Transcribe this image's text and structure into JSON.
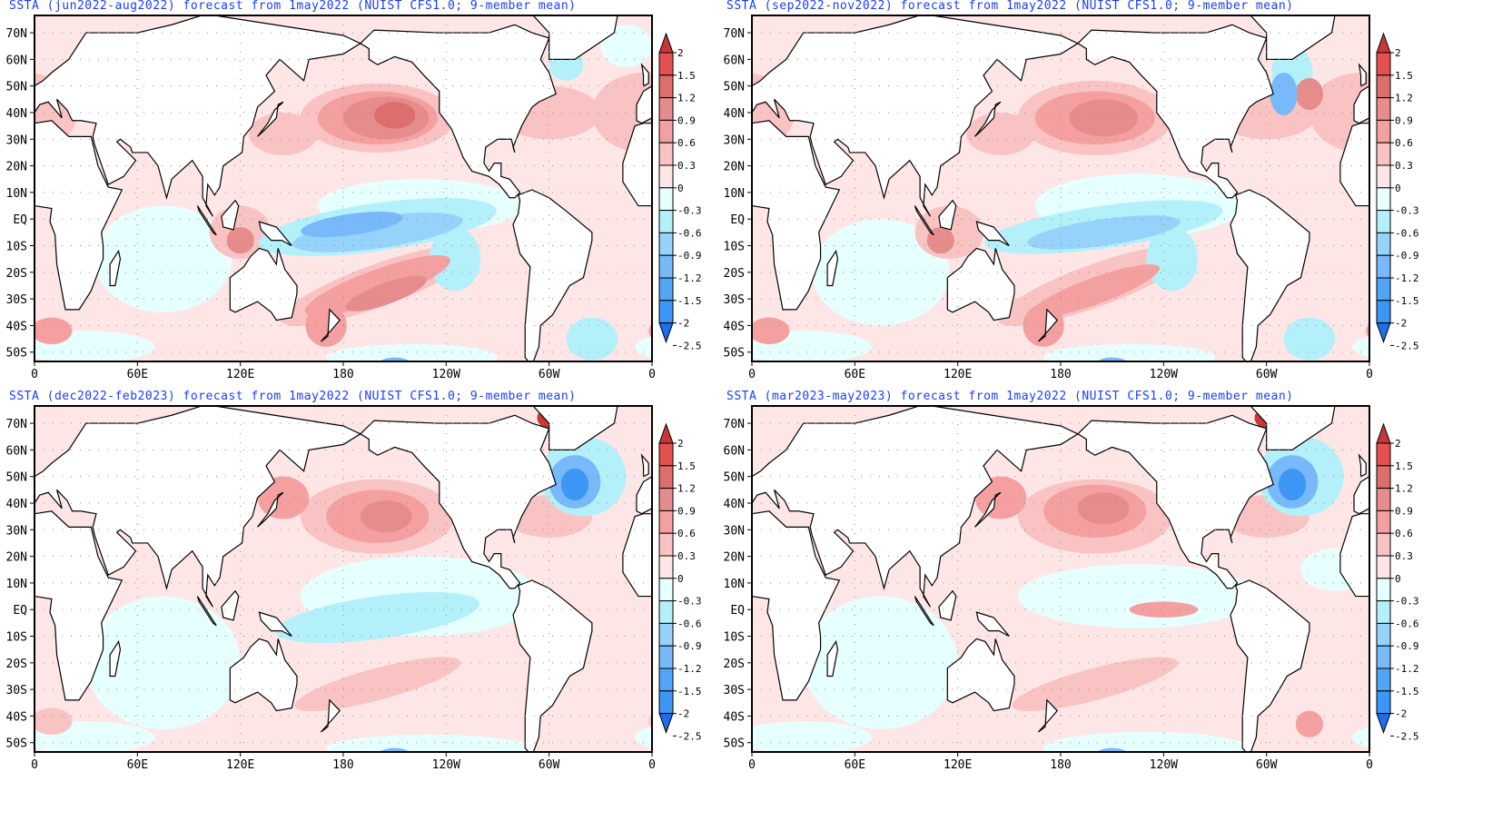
{
  "figure": {
    "colorbar_levels": [
      "2",
      "1.5",
      "1.2",
      "0.9",
      "0.6",
      "0.3",
      "0",
      "-0.3",
      "-0.6",
      "-0.9",
      "-1.2",
      "-1.5",
      "-2",
      "-2.5"
    ],
    "colorbar_colors": [
      "#c83737",
      "#e65050",
      "#dc6e6e",
      "#e68c8c",
      "#f5a0a0",
      "#fac3c3",
      "#ffe6e6",
      "#e6ffff",
      "#b4f0fa",
      "#96d2fa",
      "#78b9fa",
      "#50a5f5",
      "#3c96f5",
      "#1e6eeb"
    ],
    "lat_labels": [
      "70N",
      "60N",
      "50N",
      "40N",
      "30N",
      "20N",
      "10N",
      "EQ",
      "10S",
      "20S",
      "30S",
      "40S",
      "50S"
    ],
    "lon_labels": [
      "0",
      "60E",
      "120E",
      "180",
      "120W",
      "60W",
      "0"
    ]
  },
  "panels": [
    {
      "title": "SSTA (jun2022-aug2022) forecast from 1may2022 (NUIST CFS1.0; 9-member mean)",
      "blobs": [
        [
          75,
          -15,
          40,
          20,
          0,
          -0.3
        ],
        [
          30,
          -48,
          40,
          6,
          0,
          -0.3
        ],
        [
          220,
          -52,
          50,
          5,
          0,
          -0.3
        ],
        [
          225,
          5,
          60,
          10,
          0,
          -0.3
        ],
        [
          200,
          -3,
          70,
          9,
          -8,
          -0.6
        ],
        [
          200,
          -5,
          50,
          6,
          -8,
          -0.9
        ],
        [
          185,
          -2,
          30,
          4,
          -8,
          -1.2
        ],
        [
          245,
          -15,
          15,
          12,
          0,
          -0.6
        ],
        [
          210,
          -55,
          10,
          3,
          0,
          -1.2
        ],
        [
          325,
          -45,
          15,
          8,
          0,
          -0.6
        ],
        [
          310,
          58,
          10,
          6,
          0,
          -0.6
        ],
        [
          345,
          65,
          15,
          8,
          0,
          -0.3
        ],
        [
          200,
          38,
          45,
          13,
          0,
          0.3
        ],
        [
          200,
          38,
          35,
          10,
          0,
          0.6
        ],
        [
          205,
          38,
          25,
          8,
          0,
          0.9
        ],
        [
          210,
          39,
          12,
          5,
          0,
          1.2
        ],
        [
          145,
          32,
          20,
          8,
          0,
          0.3
        ],
        [
          120,
          -5,
          18,
          10,
          0,
          0.3
        ],
        [
          120,
          -8,
          8,
          5,
          0,
          0.9
        ],
        [
          200,
          -25,
          60,
          8,
          -20,
          0.3
        ],
        [
          200,
          -25,
          45,
          6,
          -20,
          0.6
        ],
        [
          205,
          -28,
          25,
          4,
          -20,
          0.9
        ],
        [
          10,
          -42,
          12,
          5,
          0,
          0.6
        ],
        [
          170,
          -40,
          12,
          8,
          0,
          0.6
        ],
        [
          300,
          40,
          30,
          10,
          0,
          0.3
        ],
        [
          355,
          40,
          30,
          15,
          0,
          0.3
        ]
      ]
    },
    {
      "title": "SSTA (sep2022-nov2022) forecast from 1may2022 (NUIST CFS1.0; 9-member mean)",
      "blobs": [
        [
          75,
          -20,
          40,
          20,
          0,
          -0.3
        ],
        [
          30,
          -48,
          40,
          6,
          0,
          -0.3
        ],
        [
          220,
          -52,
          50,
          5,
          0,
          -0.3
        ],
        [
          225,
          5,
          60,
          12,
          0,
          -0.3
        ],
        [
          205,
          -3,
          70,
          8,
          -8,
          -0.6
        ],
        [
          205,
          -5,
          45,
          5,
          -8,
          -0.9
        ],
        [
          245,
          -15,
          15,
          12,
          0,
          -0.6
        ],
        [
          210,
          -55,
          10,
          3,
          0,
          -1.2
        ],
        [
          325,
          -45,
          15,
          8,
          0,
          -0.6
        ],
        [
          310,
          47,
          8,
          8,
          0,
          -1.2
        ],
        [
          315,
          55,
          12,
          10,
          0,
          -0.6
        ],
        [
          200,
          38,
          45,
          14,
          0,
          0.3
        ],
        [
          200,
          38,
          35,
          10,
          0,
          0.6
        ],
        [
          205,
          38,
          20,
          7,
          0,
          0.9
        ],
        [
          145,
          32,
          20,
          8,
          0,
          0.3
        ],
        [
          115,
          -5,
          20,
          10,
          0,
          0.3
        ],
        [
          110,
          -8,
          8,
          5,
          0,
          0.9
        ],
        [
          200,
          -25,
          60,
          8,
          -20,
          0.3
        ],
        [
          200,
          -27,
          40,
          5,
          -20,
          0.6
        ],
        [
          10,
          -42,
          12,
          5,
          0,
          0.6
        ],
        [
          170,
          -40,
          12,
          8,
          0,
          0.6
        ],
        [
          300,
          40,
          30,
          10,
          0,
          0.3
        ],
        [
          355,
          40,
          30,
          15,
          0,
          0.3
        ],
        [
          325,
          47,
          8,
          6,
          0,
          0.9
        ]
      ]
    },
    {
      "title": "SSTA (dec2022-feb2023) forecast from 1may2022 (NUIST CFS1.0; 9-member mean)",
      "blobs": [
        [
          75,
          -20,
          45,
          25,
          0,
          -0.3
        ],
        [
          30,
          -48,
          40,
          6,
          0,
          -0.3
        ],
        [
          230,
          -52,
          60,
          5,
          0,
          -0.3
        ],
        [
          225,
          5,
          70,
          15,
          0,
          -0.3
        ],
        [
          200,
          -3,
          60,
          8,
          -8,
          -0.6
        ],
        [
          210,
          -55,
          10,
          3,
          0,
          -1.2
        ],
        [
          70,
          40,
          20,
          12,
          0,
          -0.3
        ],
        [
          320,
          50,
          25,
          15,
          0,
          -0.6
        ],
        [
          315,
          48,
          15,
          10,
          0,
          -1.2
        ],
        [
          315,
          47,
          8,
          6,
          0,
          -2
        ],
        [
          200,
          35,
          45,
          14,
          0,
          0.3
        ],
        [
          200,
          35,
          30,
          10,
          0,
          0.6
        ],
        [
          205,
          35,
          15,
          6,
          0,
          0.9
        ],
        [
          145,
          42,
          15,
          8,
          0,
          0.6
        ],
        [
          200,
          -28,
          50,
          6,
          -15,
          0.3
        ],
        [
          305,
          72,
          12,
          5,
          0,
          2
        ],
        [
          305,
          70,
          8,
          3,
          0,
          1.5
        ],
        [
          300,
          35,
          25,
          8,
          0,
          0.3
        ],
        [
          10,
          -42,
          12,
          5,
          0,
          0.3
        ]
      ]
    },
    {
      "title": "SSTA (mar2023-may2023) forecast from 1may2022 (NUIST CFS1.0; 9-member mean)",
      "blobs": [
        [
          75,
          -20,
          45,
          25,
          0,
          -0.3
        ],
        [
          30,
          -48,
          40,
          6,
          0,
          -0.3
        ],
        [
          230,
          -52,
          60,
          6,
          0,
          -0.3
        ],
        [
          225,
          5,
          70,
          12,
          0,
          -0.3
        ],
        [
          210,
          -55,
          10,
          3,
          0,
          -1.2
        ],
        [
          320,
          50,
          25,
          15,
          0,
          -0.6
        ],
        [
          315,
          48,
          15,
          10,
          0,
          -1.2
        ],
        [
          315,
          47,
          8,
          6,
          0,
          -2
        ],
        [
          340,
          15,
          20,
          8,
          0,
          -0.3
        ],
        [
          200,
          35,
          45,
          14,
          0,
          0.3
        ],
        [
          200,
          37,
          30,
          10,
          0,
          0.6
        ],
        [
          205,
          38,
          15,
          6,
          0,
          0.9
        ],
        [
          145,
          42,
          15,
          8,
          0,
          0.6
        ],
        [
          240,
          0,
          20,
          3,
          0,
          0.6
        ],
        [
          200,
          -28,
          50,
          6,
          -15,
          0.3
        ],
        [
          305,
          72,
          12,
          5,
          0,
          2
        ],
        [
          305,
          70,
          8,
          3,
          0,
          1.5
        ],
        [
          300,
          35,
          25,
          8,
          0,
          0.3
        ],
        [
          325,
          -43,
          8,
          5,
          0,
          0.6
        ]
      ]
    }
  ]
}
